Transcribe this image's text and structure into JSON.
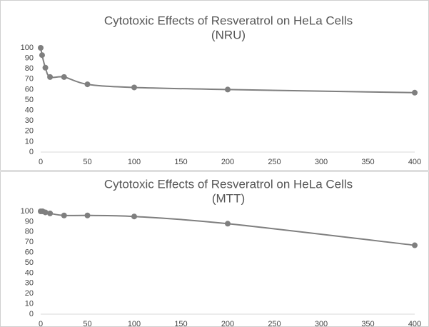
{
  "chart_data": [
    {
      "type": "line",
      "title": "Cytotoxic Effects of Resveratrol on HeLa Cells",
      "subtitle": "(NRU)",
      "series": [
        {
          "color": "#7f7f7f",
          "x": [
            0,
            1.5,
            5,
            10,
            25,
            50,
            100,
            200,
            400
          ],
          "values": [
            100,
            93,
            81,
            72,
            72,
            65,
            62,
            60,
            57
          ]
        }
      ],
      "xlim": [
        0,
        400
      ],
      "xticks": [
        0,
        50,
        100,
        150,
        200,
        250,
        300,
        350,
        400
      ],
      "ylim": [
        0,
        100
      ],
      "yticks": [
        0,
        10,
        20,
        30,
        40,
        50,
        60,
        70,
        80,
        90,
        100
      ]
    },
    {
      "type": "line",
      "title": "Cytotoxic Effects of Resveratrol on HeLa Cells",
      "subtitle": "(MTT)",
      "series": [
        {
          "color": "#7f7f7f",
          "x": [
            0,
            2,
            5,
            10,
            25,
            50,
            100,
            200,
            400
          ],
          "values": [
            100,
            100,
            99,
            98,
            96,
            96,
            95,
            88,
            67
          ]
        }
      ],
      "xlim": [
        0,
        400
      ],
      "xticks": [
        0,
        50,
        100,
        150,
        200,
        250,
        300,
        350,
        400
      ],
      "ylim": [
        0,
        100
      ],
      "yticks": [
        0,
        10,
        20,
        30,
        40,
        50,
        60,
        70,
        80,
        90,
        100
      ]
    }
  ]
}
